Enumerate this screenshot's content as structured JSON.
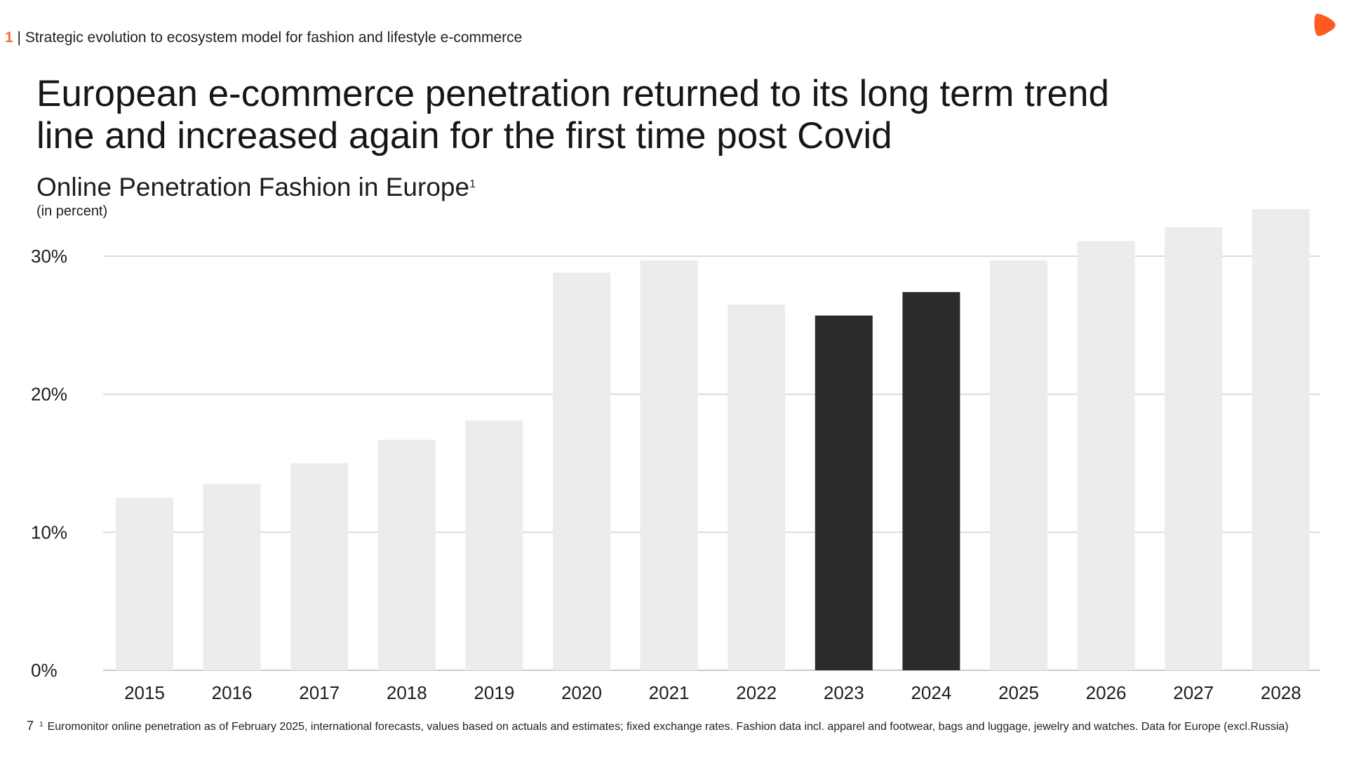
{
  "header": {
    "section_number": "1",
    "divider": "|",
    "breadcrumb": "Strategic evolution to ecosystem model for fashion and lifestyle e-commerce"
  },
  "logo": {
    "icon": "brand-play-icon",
    "color": "#ff5a1f"
  },
  "headline": {
    "line1": "European e-commerce penetration returned to its long term trend",
    "line2": "line and increased again for the first time post Covid"
  },
  "chart_data": {
    "type": "bar",
    "title": "Online Penetration Fashion in Europe",
    "title_footnote_mark": "1",
    "subtitle": "(in percent)",
    "categories": [
      "2015",
      "2016",
      "2017",
      "2018",
      "2019",
      "2020",
      "2021",
      "2022",
      "2023",
      "2024",
      "2025",
      "2026",
      "2027",
      "2028"
    ],
    "values": [
      12.5,
      13.5,
      15.0,
      16.7,
      18.1,
      28.8,
      29.7,
      26.5,
      25.7,
      27.4,
      29.7,
      31.1,
      32.1,
      33.4
    ],
    "highlighted": [
      "2023",
      "2024"
    ],
    "ylim": [
      0,
      30
    ],
    "yticks": [
      0,
      10,
      20,
      30
    ],
    "ytick_labels": [
      "0%",
      "10%",
      "20%",
      "30%"
    ],
    "xlabel": "",
    "ylabel": "",
    "grid": true,
    "colors": {
      "bar": "#ebecec",
      "highlight": "#2b2b2e",
      "grid": "#d9dbdc",
      "text": "#1d1d20"
    }
  },
  "footer": {
    "page_number": "7",
    "footnote_mark": "1",
    "footnote_text": "Euromonitor online penetration as of February 2025, international forecasts, values based on actuals and estimates; fixed exchange rates. Fashion data incl. apparel and footwear, bags and luggage, jewelry and watches. Data for Europe (excl.Russia)"
  }
}
